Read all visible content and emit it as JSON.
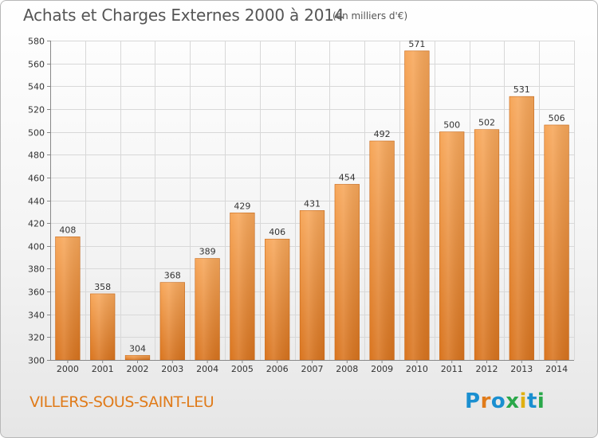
{
  "header": {
    "title": "Achats et Charges Externes 2000 à 2014",
    "subtitle": "(en milliers d'€)"
  },
  "footer": {
    "city": "VILLERS-SOUS-SAINT-LEU",
    "logo": "Proxiti"
  },
  "colors": {
    "bar_light": "#f7a75a",
    "bar_dark": "#d9741e",
    "grid": "#d8d8d8",
    "city_text": "#e07b1a",
    "logo_letters": [
      "#1a8fd0",
      "#e07b1a",
      "#1a8fd0",
      "#2aa84a",
      "#e0b010",
      "#1a8fd0",
      "#2aa84a"
    ]
  },
  "chart_data": {
    "type": "bar",
    "title": "Achats et Charges Externes 2000 à 2014",
    "subtitle": "(en milliers d'€)",
    "categories": [
      "2000",
      "2001",
      "2002",
      "2003",
      "2004",
      "2005",
      "2006",
      "2007",
      "2008",
      "2009",
      "2010",
      "2011",
      "2012",
      "2013",
      "2014"
    ],
    "values": [
      408,
      358,
      304,
      368,
      389,
      429,
      406,
      431,
      454,
      492,
      571,
      500,
      502,
      531,
      506
    ],
    "ylim": [
      300,
      580
    ],
    "yticks": [
      300,
      320,
      340,
      360,
      380,
      400,
      420,
      440,
      460,
      480,
      500,
      520,
      540,
      560,
      580
    ],
    "grid": true,
    "data_labels": true,
    "xlabel": "",
    "ylabel": ""
  }
}
